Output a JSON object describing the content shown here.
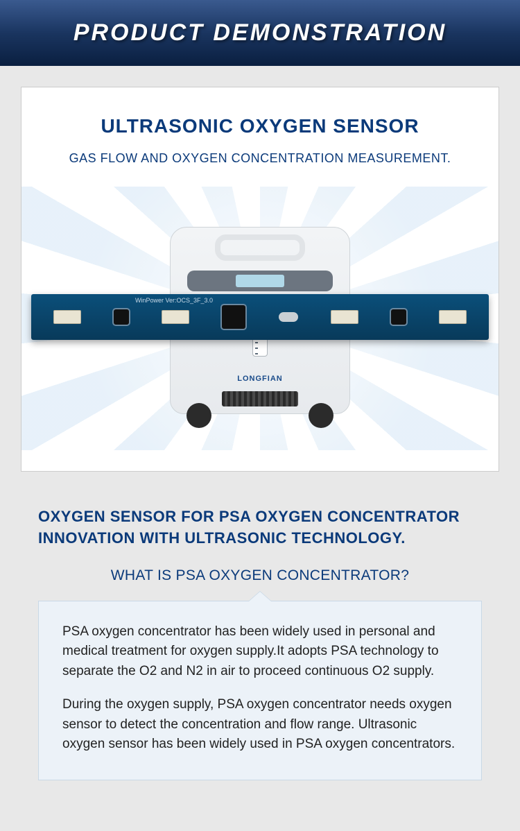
{
  "banner": {
    "title": "PRODUCT  DEMONSTRATION"
  },
  "card": {
    "title": "ULTRASONIC OXYGEN SENSOR",
    "subtitle": "GAS FLOW AND OXYGEN CONCENTRATION MEASUREMENT.",
    "brand": "LONGFIAN",
    "pcb_label": "WinPower  Ver:OCS_3F_3.0"
  },
  "section2": {
    "title_line1": "OXYGEN SENSOR FOR PSA OXYGEN CONCENTRATOR",
    "title_line2": "INNOVATION WITH ULTRASONIC TECHNOLOGY.",
    "subtitle": "WHAT IS PSA OXYGEN CONCENTRATOR?",
    "paragraph1": "PSA oxygen concentrator has been widely used in personal and medical treatment for oxygen supply.It adopts PSA technology to separate the O2 and N2 in air to proceed continuous O2 supply.",
    "paragraph2": "During the oxygen supply, PSA oxygen concentrator needs oxygen sensor to detect the concentration and flow range. Ultrasonic oxygen sensor has been widely used in PSA oxygen concentrators."
  },
  "colors": {
    "primary": "#0b3a7a",
    "banner_grad_top": "#3a5a8f",
    "banner_grad_bot": "#0a1f40",
    "infobox_bg": "#ecf2f8",
    "infobox_border": "#c9d8e6",
    "page_bg": "#e8e8e8",
    "pcb": "#0b4f7a"
  }
}
